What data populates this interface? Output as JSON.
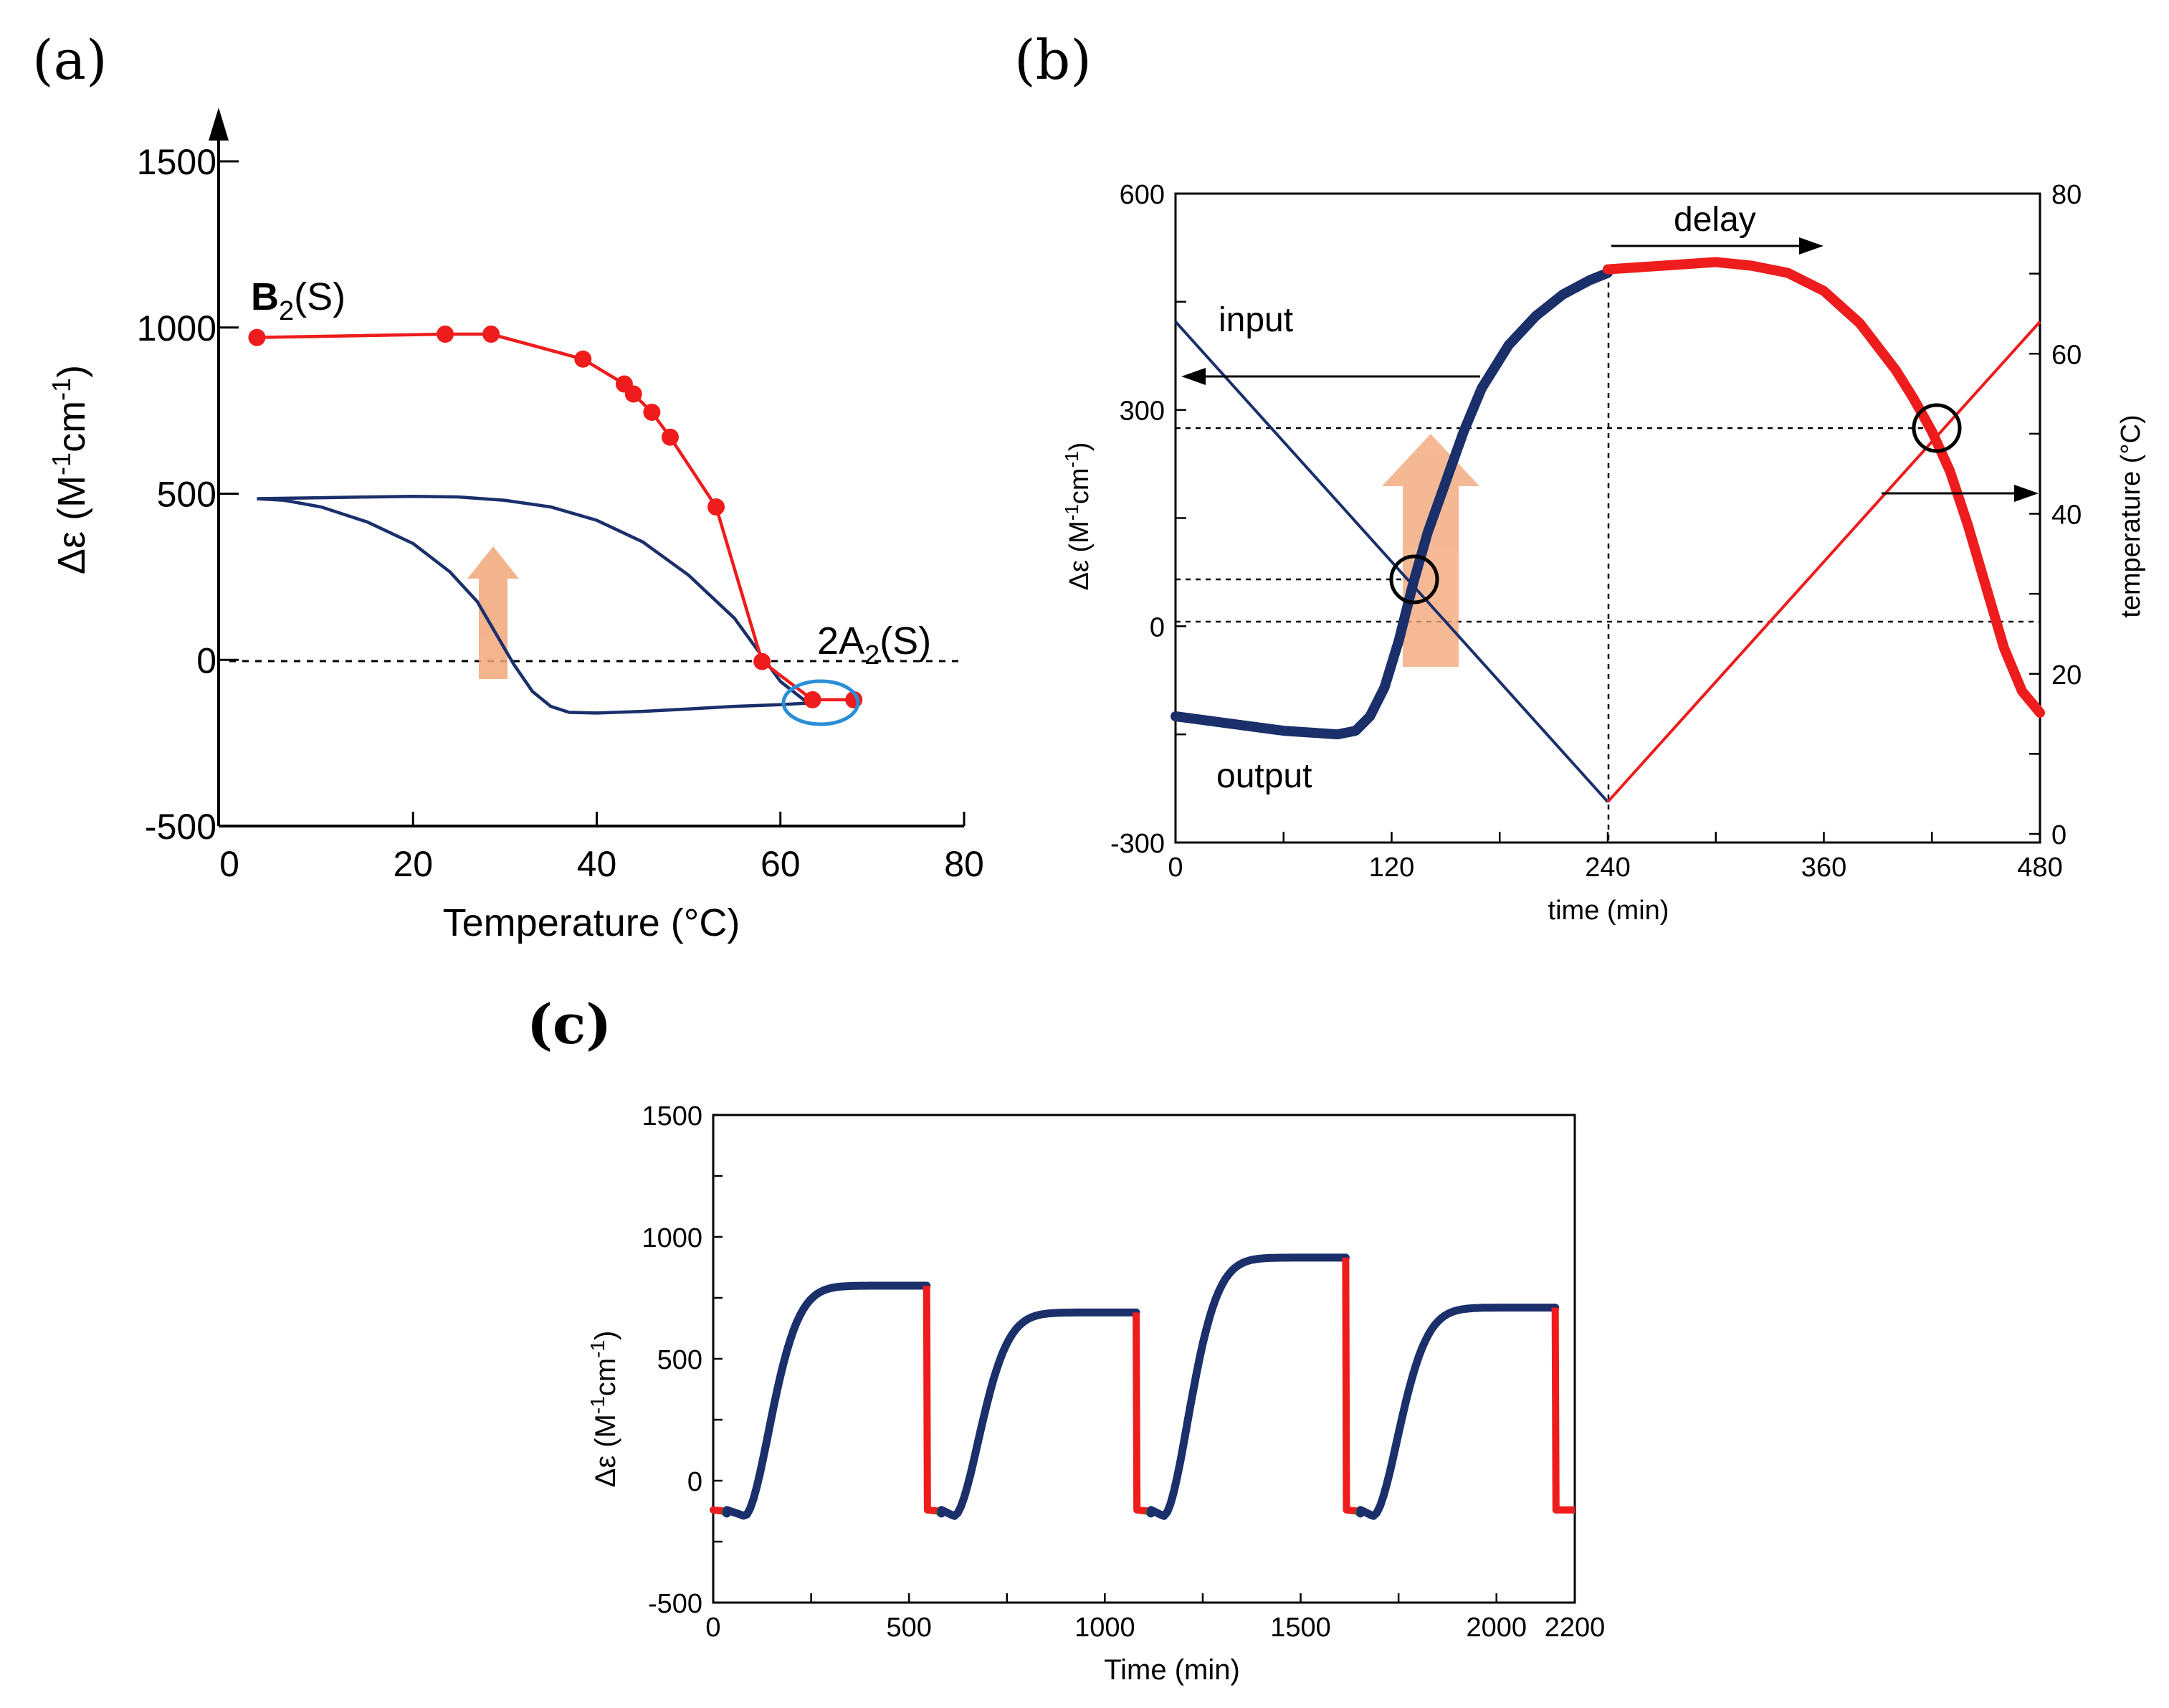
{
  "colors": {
    "red": "#ee1c1c",
    "navy": "#1b2f6b",
    "arrow": "#f2a77a",
    "ellipse": "#2a8fd6",
    "green": "#1a7a2a"
  },
  "panels": {
    "a": "(a)",
    "b": "(b)",
    "c": "(c)"
  },
  "chart_data": [
    {
      "id": "a",
      "type": "line",
      "xlabel": "Temperature (°C)",
      "ylabel_main": "Δε (M",
      "ylabel_sup1": "-1",
      "ylabel_mid": "cm",
      "ylabel_sup2": "-1",
      "ylabel_end": ")",
      "xlim": [
        0,
        80
      ],
      "ylim": [
        -500,
        1500
      ],
      "xticks": [
        0,
        20,
        40,
        60,
        80
      ],
      "yticks": [
        -500,
        0,
        500,
        1000,
        1500
      ],
      "xtick_labels": [
        "0",
        "20",
        "40",
        "60",
        "80"
      ],
      "ytick_labels": [
        "-500",
        "0",
        "500",
        "1000",
        "1500"
      ],
      "annotations": {
        "b2_main": "B",
        "b2_sub": "2",
        "b2_end": "(S)",
        "a2_pre": "2A",
        "a2_sub": "2",
        "a2_end": "(S)"
      },
      "series": [
        {
          "name": "B2(S)",
          "color": "red",
          "markers": true,
          "x": [
            3,
            23.5,
            28.5,
            38.5,
            43,
            44,
            46,
            48,
            53,
            58,
            63.5,
            68
          ],
          "y": [
            970,
            980,
            980,
            905,
            830,
            800,
            745,
            670,
            460,
            -5,
            -120,
            -120
          ]
        },
        {
          "name": "hysteresis",
          "color": "navy",
          "markers": false,
          "x": [
            3,
            10,
            15,
            20,
            25,
            30,
            35,
            40,
            45,
            50,
            55,
            60,
            63,
            60,
            55,
            50,
            45,
            40,
            37,
            35,
            33,
            31,
            29,
            27,
            24,
            20,
            15,
            10,
            6,
            3
          ],
          "y": [
            485,
            488,
            490,
            492,
            490,
            480,
            460,
            420,
            355,
            255,
            125,
            -65,
            -130,
            -135,
            -140,
            -148,
            -155,
            -160,
            -158,
            -140,
            -95,
            -15,
            80,
            175,
            265,
            350,
            415,
            460,
            480,
            485
          ]
        }
      ]
    },
    {
      "id": "b",
      "type": "line",
      "xlabel": "time (min)",
      "ylabel_main": "Δε (M",
      "ylabel_sup1": "-1",
      "ylabel_mid": "cm",
      "ylabel_sup2": "-1",
      "ylabel_end": ")",
      "y2label": "temperature (°C)",
      "xlim": [
        0,
        480
      ],
      "ylim": [
        -300,
        600
      ],
      "y2lim": [
        0,
        80
      ],
      "xticks": [
        0,
        120,
        240,
        360,
        480
      ],
      "yticks": [
        -300,
        0,
        300,
        600
      ],
      "y2ticks": [
        0,
        20,
        40,
        60,
        80
      ],
      "xtick_labels": [
        "0",
        "120",
        "240",
        "360",
        "480"
      ],
      "ytick_labels": [
        "-300",
        "0",
        "300",
        "600"
      ],
      "y2tick_labels": [
        "0",
        "20",
        "40",
        "60",
        "80"
      ],
      "annotations": {
        "input": "input",
        "output": "output",
        "delay": "delay"
      },
      "series": [
        {
          "name": "output-cooling",
          "color": "navy",
          "x": [
            0,
            30,
            60,
            90,
            100,
            108,
            116,
            124,
            132,
            140,
            150,
            160,
            170,
            185,
            200,
            215,
            230,
            240
          ],
          "y": [
            -125,
            -135,
            -145,
            -150,
            -145,
            -125,
            -85,
            -20,
            60,
            130,
            200,
            270,
            330,
            390,
            430,
            460,
            480,
            490
          ]
        },
        {
          "name": "output-heating",
          "color": "red",
          "x": [
            240,
            270,
            300,
            320,
            340,
            360,
            380,
            400,
            410,
            420,
            430,
            440,
            450,
            460,
            470,
            480
          ],
          "y": [
            495,
            500,
            505,
            500,
            490,
            465,
            420,
            355,
            315,
            270,
            215,
            140,
            55,
            -30,
            -90,
            -120
          ]
        },
        {
          "name": "input-cooling",
          "color": "navy",
          "axis": "y2",
          "x": [
            0,
            240
          ],
          "y": [
            64,
            4
          ]
        },
        {
          "name": "input-heating",
          "color": "red",
          "axis": "y2",
          "x": [
            240,
            480
          ],
          "y": [
            4,
            64
          ]
        }
      ]
    },
    {
      "id": "c",
      "type": "line",
      "xlabel": "Time (min)",
      "ylabel_main": "Δε (M",
      "ylabel_sup1": "-1",
      "ylabel_mid": "cm",
      "ylabel_sup2": "-1",
      "ylabel_end": ")",
      "xlim": [
        0,
        2200
      ],
      "ylim": [
        -500,
        1500
      ],
      "xticks": [
        0,
        500,
        1000,
        1500,
        2000,
        2200
      ],
      "yticks": [
        -500,
        0,
        500,
        1000,
        1500
      ],
      "xtick_labels": [
        "0",
        "500",
        "1000",
        "1500",
        "2000",
        "2200"
      ],
      "ytick_labels": [
        "-500",
        "0",
        "500",
        "1000",
        "1500"
      ],
      "cycles": [
        {
          "start": 0,
          "rise": 80,
          "end": 545,
          "plateau": 800
        },
        {
          "start": 548,
          "rise": 615,
          "end": 1080,
          "plateau": 690
        },
        {
          "start": 1083,
          "rise": 1150,
          "end": 1615,
          "plateau": 915
        },
        {
          "start": 1618,
          "rise": 1685,
          "end": 2150,
          "plateau": 710
        }
      ],
      "baseline": -120,
      "end_x": 2200
    }
  ]
}
